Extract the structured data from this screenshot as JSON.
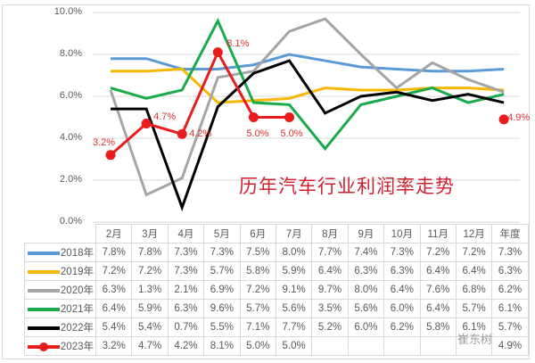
{
  "chart_data": {
    "type": "line",
    "title": "历年汽车行业利润率走势",
    "xlabel": "",
    "ylabel": "",
    "ylim": [
      0,
      10
    ],
    "y_ticks": [
      "0.0%",
      "2.0%",
      "4.0%",
      "6.0%",
      "8.0%",
      "10.0%"
    ],
    "grid": true,
    "legend_position": "table-left",
    "categories": [
      "2月",
      "3月",
      "4月",
      "5月",
      "6月",
      "7月",
      "8月",
      "9月",
      "10月",
      "11月",
      "12月",
      "年度"
    ],
    "series": [
      {
        "name": "2018年",
        "color": "#5b9bd5",
        "values": [
          7.8,
          7.8,
          7.3,
          7.3,
          7.5,
          8.0,
          7.7,
          7.4,
          7.3,
          7.2,
          7.2,
          7.3
        ]
      },
      {
        "name": "2019年",
        "color": "#f5b800",
        "values": [
          7.2,
          7.2,
          7.3,
          5.7,
          5.8,
          5.9,
          6.4,
          6.3,
          6.3,
          6.4,
          6.4,
          6.3
        ]
      },
      {
        "name": "2020年",
        "color": "#a5a5a5",
        "values": [
          6.3,
          1.3,
          2.1,
          6.9,
          7.2,
          9.1,
          9.7,
          8.0,
          6.4,
          7.6,
          6.8,
          6.2
        ]
      },
      {
        "name": "2021年",
        "color": "#1aaa4a",
        "values": [
          6.4,
          5.9,
          6.3,
          9.6,
          5.7,
          5.6,
          3.5,
          5.6,
          6.0,
          6.4,
          5.7,
          6.1
        ]
      },
      {
        "name": "2022年",
        "color": "#000000",
        "values": [
          5.4,
          5.4,
          0.7,
          5.5,
          7.1,
          7.7,
          5.2,
          6.0,
          6.2,
          5.8,
          6.1,
          5.7
        ]
      },
      {
        "name": "2023年",
        "color": "#e81c1c",
        "values": [
          3.2,
          4.7,
          4.2,
          8.1,
          5.0,
          5.0,
          null,
          null,
          null,
          null,
          null,
          4.9
        ],
        "markers": true,
        "data_labels": [
          "3.2%",
          "4.7%",
          "4.2%",
          "8.1%",
          "5.0%",
          "5.0%",
          "",
          "",
          "",
          "",
          "",
          "4.9%"
        ]
      }
    ]
  },
  "title": "历年汽车行业利润率走势",
  "y_axis": [
    "10.0%",
    "8.0%",
    "6.0%",
    "4.0%",
    "2.0%",
    "0.0%"
  ],
  "table": {
    "headers": [
      "2月",
      "3月",
      "4月",
      "5月",
      "6月",
      "7月",
      "8月",
      "9月",
      "10月",
      "11月",
      "12月",
      "年度"
    ],
    "rows": [
      {
        "label": "2018年",
        "color": "#5b9bd5",
        "cells": [
          "7.8%",
          "7.8%",
          "7.3%",
          "7.3%",
          "7.5%",
          "8.0%",
          "7.7%",
          "7.4%",
          "7.3%",
          "7.2%",
          "7.2%",
          "7.3%"
        ]
      },
      {
        "label": "2019年",
        "color": "#f5b800",
        "cells": [
          "7.2%",
          "7.2%",
          "7.3%",
          "5.7%",
          "5.8%",
          "5.9%",
          "6.4%",
          "6.3%",
          "6.3%",
          "6.4%",
          "6.4%",
          "6.3%"
        ]
      },
      {
        "label": "2020年",
        "color": "#a5a5a5",
        "cells": [
          "6.3%",
          "1.3%",
          "2.1%",
          "6.9%",
          "7.2%",
          "9.1%",
          "9.7%",
          "8.0%",
          "6.4%",
          "7.6%",
          "6.8%",
          "6.2%"
        ]
      },
      {
        "label": "2021年",
        "color": "#1aaa4a",
        "cells": [
          "6.4%",
          "5.9%",
          "6.3%",
          "9.6%",
          "5.7%",
          "5.6%",
          "3.5%",
          "5.6%",
          "6.0%",
          "6.4%",
          "5.7%",
          "6.1%"
        ]
      },
      {
        "label": "2022年",
        "color": "#000000",
        "cells": [
          "5.4%",
          "5.4%",
          "0.7%",
          "5.5%",
          "7.1%",
          "7.7%",
          "5.2%",
          "6.0%",
          "6.2%",
          "5.8%",
          "6.1%",
          "5.7%"
        ]
      },
      {
        "label": "2023年",
        "color": "#e81c1c",
        "cells": [
          "3.2%",
          "4.7%",
          "4.2%",
          "8.1%",
          "5.0%",
          "5.0%",
          "",
          "",
          "",
          "",
          "",
          "4.9%"
        ]
      }
    ]
  },
  "watermark": "崔东树"
}
